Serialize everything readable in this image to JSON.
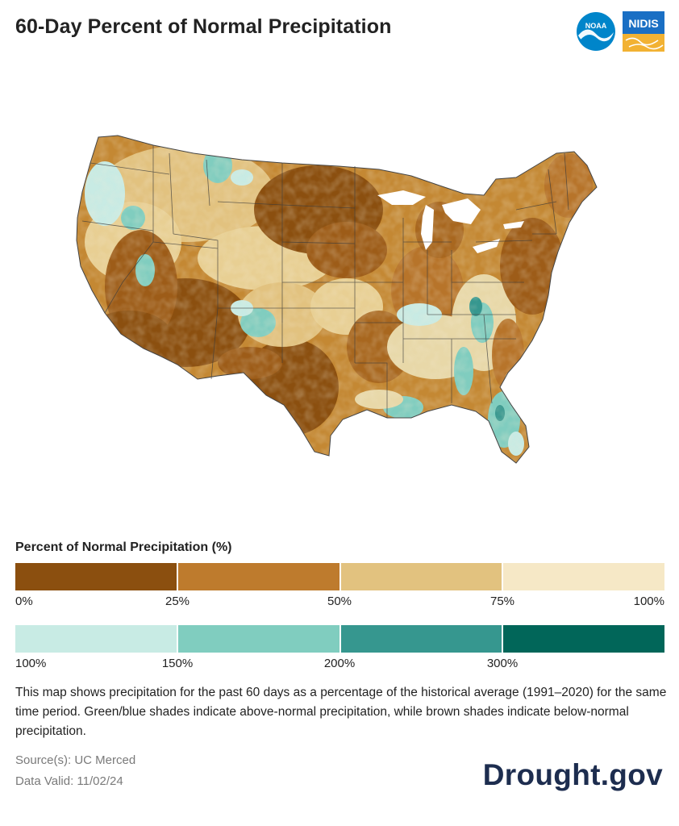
{
  "title": "60-Day Percent of Normal Precipitation",
  "logos": {
    "noaa": {
      "text": "NOAA",
      "icon": "noaa-logo-icon",
      "color": "#0085ca"
    },
    "nidis": {
      "text": "NIDIS",
      "icon": "nidis-logo-icon",
      "color": "#1a6fc4"
    }
  },
  "map": {
    "region": "Contiguous United States",
    "icon": "us-map"
  },
  "legend": {
    "title": "Percent of Normal Precipitation (%)",
    "dry": {
      "colors": [
        "#8b4f0f",
        "#be7b2d",
        "#e2c27f",
        "#f6e8c6"
      ],
      "ticks": [
        "0%",
        "25%",
        "50%",
        "75%",
        "100%"
      ]
    },
    "wet": {
      "colors": [
        "#c8ebe4",
        "#80cdbf",
        "#36978f",
        "#016659"
      ],
      "ticks": [
        "100%",
        "150%",
        "200%",
        "300%"
      ]
    }
  },
  "description": "This map shows precipitation for the past 60 days as a percentage of the historical average (1991–2020) for the same time period. Green/blue shades indicate above-normal precipitation, while brown shades indicate below-normal precipitation.",
  "source": "Source(s): UC Merced",
  "valid": "Data Valid: 11/02/24",
  "brand": "Drought.gov"
}
